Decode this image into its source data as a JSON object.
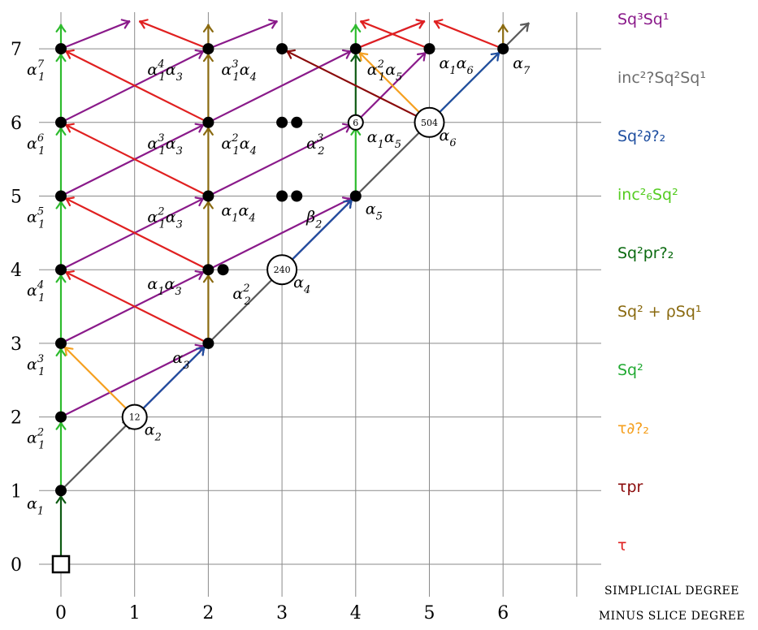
{
  "chart_data": {
    "type": "spectral-sequence",
    "x_ticks": [
      "0",
      "1",
      "2",
      "3",
      "4",
      "5",
      "6"
    ],
    "y_ticks": [
      "0",
      "1",
      "2",
      "3",
      "4",
      "5",
      "6",
      "7"
    ],
    "xlabel_line1": "Simplicial degree",
    "xlabel_line2": "minus slice degree",
    "xlim": [
      0,
      7
    ],
    "ylim": [
      0,
      7
    ],
    "grid": true,
    "dots": [
      {
        "x": 0,
        "y": 1
      },
      {
        "x": 0,
        "y": 2
      },
      {
        "x": 0,
        "y": 3
      },
      {
        "x": 0,
        "y": 4
      },
      {
        "x": 0,
        "y": 5
      },
      {
        "x": 0,
        "y": 6
      },
      {
        "x": 0,
        "y": 7
      },
      {
        "x": 2,
        "y": 3
      },
      {
        "x": 2,
        "y": 4
      },
      {
        "x": 2.2,
        "y": 4
      },
      {
        "x": 2,
        "y": 5
      },
      {
        "x": 2,
        "y": 6
      },
      {
        "x": 2,
        "y": 7
      },
      {
        "x": 3,
        "y": 5
      },
      {
        "x": 3.2,
        "y": 5
      },
      {
        "x": 3,
        "y": 6
      },
      {
        "x": 3.2,
        "y": 6
      },
      {
        "x": 3,
        "y": 7
      },
      {
        "x": 4,
        "y": 5
      },
      {
        "x": 4,
        "y": 7
      },
      {
        "x": 5,
        "y": 7
      },
      {
        "x": 6,
        "y": 7
      }
    ],
    "square": {
      "x": 0,
      "y": 0
    },
    "circles": [
      {
        "x": 1,
        "y": 2,
        "label": "12",
        "r": 15
      },
      {
        "x": 3,
        "y": 4,
        "label": "240",
        "r": 18
      },
      {
        "x": 4,
        "y": 6,
        "label": "6",
        "r": 9
      },
      {
        "x": 5,
        "y": 6,
        "label": "504",
        "r": 18
      }
    ],
    "labels": [
      {
        "x": 0,
        "y": 1,
        "base": "α",
        "sub": "1",
        "sup": "",
        "dx": -42,
        "dy": 22
      },
      {
        "x": 0,
        "y": 2,
        "base": "α",
        "sub": "1",
        "sup": "2",
        "dx": -42,
        "dy": 32
      },
      {
        "x": 0,
        "y": 3,
        "base": "α",
        "sub": "1",
        "sup": "3",
        "dx": -42,
        "dy": 32
      },
      {
        "x": 0,
        "y": 4,
        "base": "α",
        "sub": "1",
        "sup": "4",
        "dx": -42,
        "dy": 32
      },
      {
        "x": 0,
        "y": 5,
        "base": "α",
        "sub": "1",
        "sup": "5",
        "dx": -42,
        "dy": 32
      },
      {
        "x": 0,
        "y": 6,
        "base": "α",
        "sub": "1",
        "sup": "6",
        "dx": -42,
        "dy": 32
      },
      {
        "x": 0,
        "y": 7,
        "base": "α",
        "sub": "1",
        "sup": "7",
        "dx": -42,
        "dy": 32
      },
      {
        "x": 1,
        "y": 2,
        "base": "α",
        "sub": "2",
        "sup": "",
        "dx": 12,
        "dy": 22
      },
      {
        "x": 2,
        "y": 3,
        "base": "α",
        "sub": "3",
        "sup": "",
        "dx": -44,
        "dy": 24
      },
      {
        "x": 2,
        "y": 4,
        "base": "α",
        "sub": "1",
        "sup": "",
        "tail": "α",
        "tailsub": "3",
        "dx": -75,
        "dy": 24
      },
      {
        "x": 2,
        "y": 5,
        "base": "α",
        "sub": "1",
        "sup": "2",
        "tail": "α",
        "tailsub": "3",
        "dx": -75,
        "dy": 32
      },
      {
        "x": 2,
        "y": 6,
        "base": "α",
        "sub": "1",
        "sup": "3",
        "tail": "α",
        "tailsub": "3",
        "dx": -75,
        "dy": 32
      },
      {
        "x": 2,
        "y": 7,
        "base": "α",
        "sub": "1",
        "sup": "4",
        "tail": "α",
        "tailsub": "3",
        "dx": -75,
        "dy": 32
      },
      {
        "x": 2,
        "y": 5,
        "base": "α",
        "sub": "1",
        "sup": "",
        "tail": "α",
        "tailsub": "4",
        "dx": 16,
        "dy": 24
      },
      {
        "x": 2,
        "y": 6,
        "base": "α",
        "sub": "1",
        "sup": "2",
        "tail": "α",
        "tailsub": "4",
        "dx": 16,
        "dy": 32
      },
      {
        "x": 2,
        "y": 7,
        "base": "α",
        "sub": "1",
        "sup": "3",
        "tail": "α",
        "tailsub": "4",
        "dx": 16,
        "dy": 32
      },
      {
        "x": 2,
        "y": 4,
        "base": "α",
        "sub": "2",
        "sup": "2",
        "dx": 30,
        "dy": 36
      },
      {
        "x": 3,
        "y": 4,
        "base": "α",
        "sub": "4",
        "sup": "",
        "dx": 14,
        "dy": 22
      },
      {
        "x": 3,
        "y": 5,
        "base": "β",
        "sub": "2",
        "sup": "",
        "dx": 30,
        "dy": 32
      },
      {
        "x": 3,
        "y": 6,
        "base": "α",
        "sub": "2",
        "sup": "3",
        "dx": 30,
        "dy": 32
      },
      {
        "x": 4,
        "y": 5,
        "base": "α",
        "sub": "5",
        "sup": "",
        "dx": 12,
        "dy": 22
      },
      {
        "x": 4,
        "y": 6,
        "base": "α",
        "sub": "1",
        "sup": "",
        "tail": "α",
        "tailsub": "5",
        "dx": 14,
        "dy": 24
      },
      {
        "x": 4,
        "y": 7,
        "base": "α",
        "sub": "1",
        "sup": "2",
        "tail": "α",
        "tailsub": "5",
        "dx": 14,
        "dy": 32
      },
      {
        "x": 5,
        "y": 6,
        "base": "α",
        "sub": "6",
        "sup": "",
        "dx": 12,
        "dy": 22
      },
      {
        "x": 5,
        "y": 7,
        "base": "α",
        "sub": "1",
        "sup": "",
        "tail": "α",
        "tailsub": "6",
        "dx": 12,
        "dy": 24
      },
      {
        "x": 6,
        "y": 7,
        "base": "α",
        "sub": "7",
        "sup": "",
        "dx": 12,
        "dy": 24
      }
    ],
    "arrows": {
      "gray": [
        [
          0,
          1,
          1,
          2
        ],
        [
          1,
          2,
          2,
          3
        ],
        [
          2,
          3,
          3,
          4
        ],
        [
          3,
          4,
          4,
          5
        ],
        [
          4,
          5,
          5,
          6
        ],
        [
          5,
          6,
          6.4,
          7.4
        ]
      ],
      "dkgreen": [
        [
          0,
          0,
          0,
          1
        ],
        [
          4,
          6,
          4,
          7
        ]
      ],
      "green": [
        [
          0,
          1,
          0,
          2
        ],
        [
          0,
          2,
          0,
          3
        ],
        [
          0,
          3,
          0,
          4
        ],
        [
          0,
          4,
          0,
          5
        ],
        [
          0,
          5,
          0,
          6
        ],
        [
          0,
          6,
          0,
          7
        ],
        [
          0,
          7,
          0,
          7.4
        ],
        [
          4,
          5,
          4,
          6
        ],
        [
          4,
          7,
          4,
          7.4
        ]
      ],
      "olive": [
        [
          2,
          3,
          2,
          4
        ],
        [
          2,
          4,
          2,
          5
        ],
        [
          2,
          5,
          2,
          6
        ],
        [
          2,
          6,
          2,
          7
        ],
        [
          2,
          7,
          2,
          7.4
        ],
        [
          6,
          7,
          6,
          7.4
        ]
      ],
      "purple": [
        [
          0,
          2,
          2,
          3
        ],
        [
          0,
          3,
          2,
          4
        ],
        [
          0,
          4,
          2,
          5
        ],
        [
          0,
          5,
          2,
          6
        ],
        [
          0,
          6,
          2,
          7
        ],
        [
          0,
          7,
          1,
          7.4
        ],
        [
          2,
          7,
          3,
          7.4
        ],
        [
          1,
          2,
          2,
          3
        ],
        [
          2,
          4,
          4,
          5
        ],
        [
          2,
          5,
          4,
          6
        ],
        [
          2,
          6,
          4,
          7
        ],
        [
          4,
          7,
          5,
          7.4
        ],
        [
          3,
          4,
          4,
          5
        ],
        [
          4,
          6,
          5,
          7
        ]
      ],
      "red": [
        [
          2,
          3,
          0,
          4
        ],
        [
          2,
          4,
          0,
          5
        ],
        [
          2,
          5,
          0,
          6
        ],
        [
          2,
          6,
          0,
          7
        ],
        [
          2,
          7,
          1,
          7.4
        ],
        [
          4,
          7,
          5,
          7.4
        ],
        [
          5,
          7,
          4,
          7.4
        ],
        [
          6,
          7,
          5,
          7.4
        ]
      ],
      "orange": [
        [
          1,
          2,
          0,
          3
        ],
        [
          5,
          6,
          4,
          7
        ]
      ],
      "dkred": [
        [
          5,
          6,
          3,
          7
        ]
      ],
      "blue": [
        [
          1,
          2,
          2,
          3
        ],
        [
          3,
          4,
          4,
          5
        ],
        [
          5,
          6,
          6,
          7
        ]
      ]
    },
    "legend": [
      {
        "text": "Sq³Sq¹",
        "color": "#8a1a8a"
      },
      {
        "text": "inc²?Sq²Sq¹",
        "color": "#6e6e6e"
      },
      {
        "text": "Sq²∂?₂",
        "color": "#1f4fa0"
      },
      {
        "text": "inc²₆Sq²",
        "color": "#55cc22"
      },
      {
        "text": "Sq²pr?₂",
        "color": "#0a6a10"
      },
      {
        "text": "Sq² + ρSq¹",
        "color": "#8a6a10"
      },
      {
        "text": "Sq²",
        "color": "#22aa33"
      },
      {
        "text": "τ∂?₂",
        "color": "#f5a020"
      },
      {
        "text": "τpr",
        "color": "#8a0a0a"
      },
      {
        "text": "τ",
        "color": "#e02020"
      }
    ]
  }
}
